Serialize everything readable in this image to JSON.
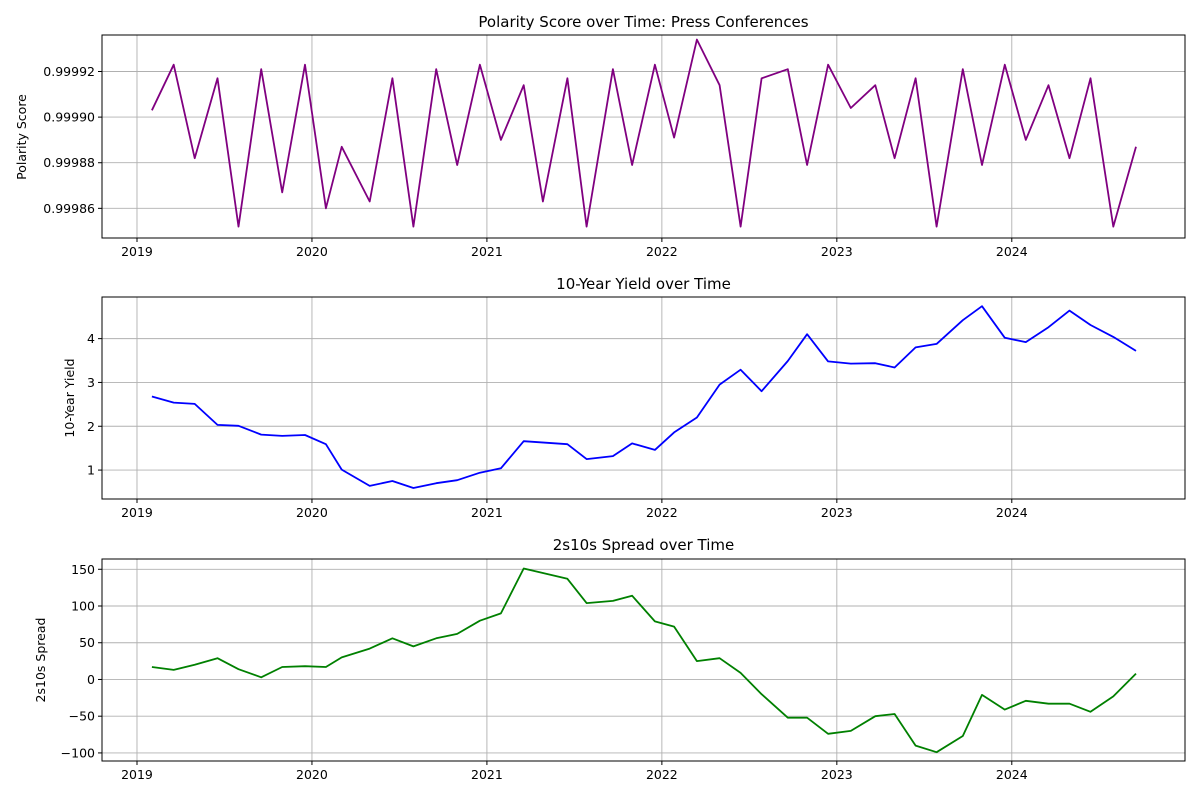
{
  "chart_data": [
    {
      "type": "line",
      "title": "Polarity Score over Time: Press Conferences",
      "xlabel": "",
      "ylabel": "Polarity Score",
      "color": "#800080",
      "grid": true,
      "xlim": [
        2018.8,
        2024.99
      ],
      "ylim": [
        0.999847,
        0.999936
      ],
      "x_ticks": [
        2019,
        2020,
        2021,
        2022,
        2023,
        2024
      ],
      "x_tick_labels": [
        "2019",
        "2020",
        "2021",
        "2022",
        "2023",
        "2024"
      ],
      "y_ticks": [
        0.99986,
        0.99988,
        0.9999,
        0.99992
      ],
      "y_tick_labels": [
        "0.99986",
        "0.99988",
        "0.99990",
        "0.99992"
      ],
      "x": [
        2019.085,
        2019.21,
        2019.33,
        2019.46,
        2019.58,
        2019.71,
        2019.83,
        2019.96,
        2020.08,
        2020.17,
        2020.33,
        2020.46,
        2020.58,
        2020.71,
        2020.83,
        2020.96,
        2021.08,
        2021.21,
        2021.32,
        2021.46,
        2021.57,
        2021.72,
        2021.83,
        2021.96,
        2022.07,
        2022.2,
        2022.33,
        2022.45,
        2022.57,
        2022.72,
        2022.83,
        2022.95,
        2023.08,
        2023.22,
        2023.33,
        2023.45,
        2023.57,
        2023.72,
        2023.83,
        2023.96,
        2024.08,
        2024.21,
        2024.33,
        2024.45,
        2024.58,
        2024.71
      ],
      "y": [
        0.999903,
        0.999923,
        0.999882,
        0.999917,
        0.999852,
        0.999921,
        0.999867,
        0.999923,
        0.99986,
        0.999887,
        0.999863,
        0.999917,
        0.999852,
        0.999921,
        0.999879,
        0.999923,
        0.99989,
        0.999914,
        0.999863,
        0.999917,
        0.999852,
        0.999921,
        0.999879,
        0.999923,
        0.999891,
        0.999934,
        0.999914,
        0.999852,
        0.999917,
        0.999921,
        0.999879,
        0.999923,
        0.999904,
        0.999914,
        0.999882,
        0.999917,
        0.999852,
        0.999921,
        0.999879,
        0.999923,
        0.99989,
        0.999914,
        0.999882,
        0.999917,
        0.999852,
        0.999887
      ]
    },
    {
      "type": "line",
      "title": "10-Year Yield over Time",
      "xlabel": "",
      "ylabel": "10-Year Yield",
      "color": "#0000ff",
      "grid": true,
      "xlim": [
        2018.8,
        2024.99
      ],
      "ylim": [
        0.34,
        4.95
      ],
      "x_ticks": [
        2019,
        2020,
        2021,
        2022,
        2023,
        2024
      ],
      "x_tick_labels": [
        "2019",
        "2020",
        "2021",
        "2022",
        "2023",
        "2024"
      ],
      "y_ticks": [
        1,
        2,
        3,
        4
      ],
      "y_tick_labels": [
        "1",
        "2",
        "3",
        "4"
      ],
      "x": [
        2019.085,
        2019.21,
        2019.33,
        2019.46,
        2019.58,
        2019.71,
        2019.83,
        2019.96,
        2020.08,
        2020.17,
        2020.33,
        2020.46,
        2020.58,
        2020.71,
        2020.83,
        2020.96,
        2021.08,
        2021.21,
        2021.46,
        2021.57,
        2021.72,
        2021.83,
        2021.96,
        2022.07,
        2022.2,
        2022.33,
        2022.45,
        2022.57,
        2022.72,
        2022.83,
        2022.95,
        2023.08,
        2023.22,
        2023.33,
        2023.45,
        2023.57,
        2023.72,
        2023.83,
        2023.96,
        2024.08,
        2024.21,
        2024.33,
        2024.45,
        2024.58,
        2024.71
      ],
      "y": [
        2.68,
        2.54,
        2.51,
        2.03,
        2.01,
        1.81,
        1.78,
        1.8,
        1.59,
        1.01,
        0.64,
        0.75,
        0.59,
        0.7,
        0.77,
        0.94,
        1.04,
        1.66,
        1.59,
        1.25,
        1.32,
        1.61,
        1.46,
        1.86,
        2.2,
        2.95,
        3.29,
        2.8,
        3.49,
        4.1,
        3.48,
        3.43,
        3.44,
        3.34,
        3.8,
        3.88,
        4.42,
        4.74,
        4.02,
        3.92,
        4.26,
        4.64,
        4.31,
        4.04,
        3.72
      ]
    },
    {
      "type": "line",
      "title": "2s10s Spread over Time",
      "xlabel": "",
      "ylabel": "2s10s Spread",
      "color": "#008000",
      "grid": true,
      "xlim": [
        2018.8,
        2024.99
      ],
      "ylim": [
        -111,
        164
      ],
      "x_ticks": [
        2019,
        2020,
        2021,
        2022,
        2023,
        2024
      ],
      "x_tick_labels": [
        "2019",
        "2020",
        "2021",
        "2022",
        "2023",
        "2024"
      ],
      "y_ticks": [
        -100,
        -50,
        0,
        50,
        100,
        150
      ],
      "y_tick_labels": [
        "−100",
        "−50",
        "0",
        "50",
        "100",
        "150"
      ],
      "x": [
        2019.085,
        2019.21,
        2019.33,
        2019.46,
        2019.58,
        2019.71,
        2019.83,
        2019.96,
        2020.08,
        2020.17,
        2020.33,
        2020.46,
        2020.58,
        2020.71,
        2020.83,
        2020.96,
        2021.08,
        2021.21,
        2021.46,
        2021.57,
        2021.72,
        2021.83,
        2021.96,
        2022.07,
        2022.2,
        2022.33,
        2022.45,
        2022.57,
        2022.72,
        2022.83,
        2022.95,
        2023.08,
        2023.22,
        2023.33,
        2023.45,
        2023.57,
        2023.72,
        2023.83,
        2023.96,
        2024.08,
        2024.21,
        2024.33,
        2024.45,
        2024.58,
        2024.71
      ],
      "y": [
        17,
        13,
        20,
        29,
        14,
        3,
        17,
        18,
        17,
        30,
        42,
        56,
        45,
        56,
        62,
        80,
        90,
        151,
        137,
        104,
        107,
        114,
        79,
        72,
        25,
        29,
        9,
        -20,
        -52,
        -52,
        -74,
        -70,
        -50,
        -47,
        -90,
        -99,
        -77,
        -21,
        -41,
        -29,
        -33,
        -33,
        -44,
        -23,
        8
      ]
    }
  ]
}
